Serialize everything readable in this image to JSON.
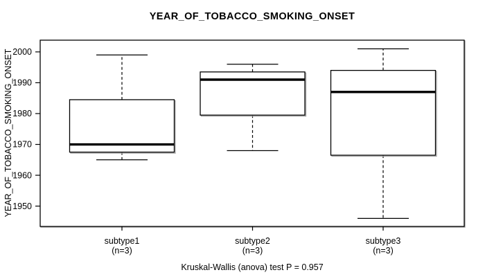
{
  "chart_data": {
    "type": "boxplot",
    "title": "YEAR_OF_TOBACCO_SMOKING_ONSET",
    "ylabel": "YEAR_OF_TOBACCO_SMOKING_ONSET",
    "footer": "Kruskal-Wallis (anova) test P = 0.957",
    "p_value": "0.957",
    "categories": [
      "subtype1",
      "subtype2",
      "subtype3"
    ],
    "category_sublabels": [
      "(n=3)",
      "(n=3)",
      "(n=3)"
    ],
    "y_ticks": [
      1950,
      1960,
      1970,
      1980,
      1990,
      2000
    ],
    "ylim": [
      1943.4,
      2003.8
    ],
    "grid": false,
    "series": [
      {
        "name": "subtype1",
        "lower_whisker": 1965,
        "q1": 1967.5,
        "median": 1970,
        "q3": 1984.5,
        "upper_whisker": 1999
      },
      {
        "name": "subtype2",
        "lower_whisker": 1968,
        "q1": 1979.5,
        "median": 1991,
        "q3": 1993.5,
        "upper_whisker": 1996
      },
      {
        "name": "subtype3",
        "lower_whisker": 1946,
        "q1": 1966.5,
        "median": 1987,
        "q3": 1994,
        "upper_whisker": 2001
      }
    ],
    "colors": {
      "stroke": "#000000",
      "box_fill": "#ffffff",
      "shadow": "#a3a3a3",
      "background": "#ffffff"
    }
  }
}
